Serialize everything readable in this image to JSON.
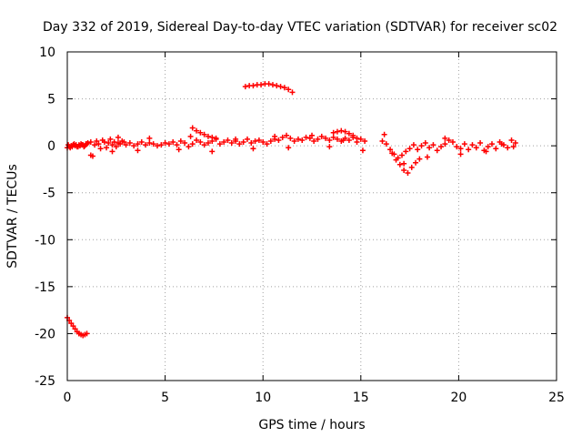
{
  "chart_data": {
    "type": "scatter",
    "title": "Day 332 of 2019, Sidereal Day-to-day VTEC variation (SDTVAR) for receiver sc02",
    "xlabel": "GPS time / hours",
    "ylabel": "SDTVAR / TECUs",
    "xlim": [
      0,
      25
    ],
    "ylim": [
      -25,
      10
    ],
    "xticks": [
      0,
      5,
      10,
      15,
      20,
      25
    ],
    "yticks": [
      -25,
      -20,
      -15,
      -10,
      -5,
      0,
      5,
      10
    ],
    "xtick_labels": [
      "0",
      "5",
      "10",
      "15",
      "20",
      "25"
    ],
    "ytick_labels": [
      "-25",
      "-20",
      "-15",
      "-10",
      "-5",
      "0",
      "5",
      "10"
    ],
    "grid": true,
    "legend": "none",
    "marker": "+",
    "color": "#ff0000",
    "series": [
      {
        "name": "sc02 SDTVAR",
        "x": [
          0.0,
          0.1,
          0.2,
          0.3,
          0.4,
          0.5,
          0.6,
          0.7,
          0.8,
          0.9,
          1.0,
          0.05,
          0.15,
          0.25,
          0.35,
          0.45,
          0.55,
          0.65,
          0.75,
          0.85,
          0.95,
          1.05,
          1.2,
          1.4,
          1.5,
          1.6,
          1.7,
          1.8,
          1.9,
          2.0,
          2.1,
          2.2,
          2.3,
          2.4,
          2.5,
          2.6,
          2.7,
          2.8,
          2.9,
          3.0,
          3.2,
          3.4,
          3.6,
          3.8,
          4.0,
          4.2,
          4.4,
          4.6,
          4.8,
          5.0,
          5.2,
          5.4,
          5.6,
          5.8,
          6.0,
          6.2,
          6.4,
          6.6,
          6.8,
          7.0,
          7.2,
          7.4,
          7.6,
          7.8,
          8.0,
          8.2,
          8.4,
          8.6,
          8.8,
          9.0,
          9.2,
          9.4,
          9.6,
          9.8,
          10.0,
          10.2,
          10.4,
          10.6,
          10.8,
          11.0,
          11.2,
          11.4,
          11.6,
          11.8,
          12.0,
          12.2,
          12.4,
          12.6,
          12.8,
          13.0,
          13.2,
          13.4,
          13.6,
          13.8,
          14.0,
          14.2,
          14.4,
          14.6,
          14.8,
          15.0,
          15.2,
          1.2,
          2.3,
          2.6,
          3.6,
          4.2,
          5.7,
          6.3,
          7.4,
          8.6,
          9.5,
          10.6,
          11.3,
          12.5,
          13.4,
          14.1,
          15.1,
          6.4,
          6.6,
          6.8,
          7.0,
          7.2,
          7.4,
          7.6,
          13.6,
          13.8,
          14.0,
          14.2,
          14.4,
          14.6,
          14.8,
          9.1,
          9.3,
          9.5,
          9.7,
          9.9,
          10.1,
          10.3,
          10.5,
          10.7,
          10.9,
          11.1,
          11.3,
          11.5,
          0.0,
          0.1,
          0.2,
          0.3,
          0.4,
          0.5,
          0.6,
          0.7,
          0.8,
          0.9,
          1.0,
          16.1,
          16.3,
          16.5,
          16.7,
          16.9,
          17.1,
          17.3,
          17.5,
          17.7,
          17.9,
          18.1,
          18.3,
          18.5,
          18.7,
          18.9,
          19.1,
          19.3,
          19.5,
          19.7,
          19.9,
          20.1,
          20.3,
          20.5,
          20.7,
          20.9,
          21.1,
          21.3,
          21.5,
          21.7,
          21.9,
          22.1,
          22.3,
          22.5,
          22.7,
          22.9,
          16.8,
          17.0,
          17.2,
          17.4,
          17.6,
          17.8,
          18.0,
          16.2,
          16.6,
          17.2,
          18.4,
          19.3,
          20.1,
          21.4,
          22.2,
          22.8,
          1.3,
          0.6
        ],
        "y": [
          -0.2,
          -0.1,
          0.0,
          0.1,
          0.0,
          -0.1,
          0.1,
          0.2,
          0.1,
          0.0,
          0.2,
          0.1,
          -0.2,
          -0.1,
          0.2,
          0.1,
          -0.1,
          0.0,
          0.1,
          -0.1,
          0.2,
          0.3,
          0.4,
          0.1,
          0.5,
          0.2,
          -0.3,
          0.6,
          0.4,
          -0.2,
          0.3,
          0.7,
          0.1,
          0.4,
          -0.1,
          0.3,
          0.2,
          0.5,
          0.4,
          0.1,
          0.3,
          0.0,
          0.2,
          0.4,
          0.1,
          0.3,
          0.2,
          0.0,
          0.1,
          0.3,
          0.2,
          0.4,
          0.1,
          0.5,
          0.3,
          -0.1,
          0.2,
          0.6,
          0.4,
          0.1,
          0.3,
          0.5,
          0.7,
          0.2,
          0.4,
          0.6,
          0.3,
          0.5,
          0.2,
          0.4,
          0.7,
          0.3,
          0.5,
          0.6,
          0.4,
          0.2,
          0.5,
          0.7,
          0.6,
          0.9,
          1.1,
          0.8,
          0.5,
          0.7,
          0.6,
          0.9,
          0.8,
          0.5,
          0.7,
          1.0,
          0.8,
          0.6,
          0.9,
          0.7,
          0.5,
          0.8,
          0.6,
          0.9,
          0.4,
          0.7,
          0.5,
          -1.0,
          -0.6,
          0.9,
          -0.5,
          0.8,
          -0.4,
          1.0,
          -0.6,
          0.7,
          -0.3,
          1.0,
          -0.2,
          1.1,
          -0.1,
          0.6,
          -0.5,
          1.9,
          1.6,
          1.4,
          1.2,
          1.0,
          0.9,
          0.8,
          1.4,
          1.5,
          1.6,
          1.5,
          1.3,
          1.1,
          0.8,
          6.3,
          6.4,
          6.4,
          6.5,
          6.5,
          6.6,
          6.6,
          6.5,
          6.4,
          6.3,
          6.2,
          6.0,
          5.7,
          -18.3,
          -18.6,
          -18.9,
          -19.2,
          -19.5,
          -19.8,
          -20.0,
          -20.1,
          -20.2,
          -20.1,
          -20.0,
          0.5,
          0.2,
          -0.4,
          -0.9,
          -1.3,
          -1.0,
          -0.6,
          -0.3,
          0.1,
          -0.4,
          0.0,
          0.3,
          -0.2,
          0.1,
          -0.5,
          -0.1,
          0.2,
          0.6,
          0.4,
          -0.1,
          -0.3,
          0.2,
          -0.4,
          0.1,
          -0.2,
          0.3,
          -0.5,
          -0.1,
          0.2,
          -0.3,
          0.4,
          0.1,
          -0.2,
          0.6,
          0.3,
          -1.5,
          -2.0,
          -2.6,
          -2.9,
          -2.3,
          -1.8,
          -1.4,
          1.2,
          -0.8,
          -1.9,
          -1.2,
          0.8,
          -0.9,
          -0.6,
          0.2,
          -0.1,
          -1.1,
          -20.0
        ]
      }
    ]
  }
}
